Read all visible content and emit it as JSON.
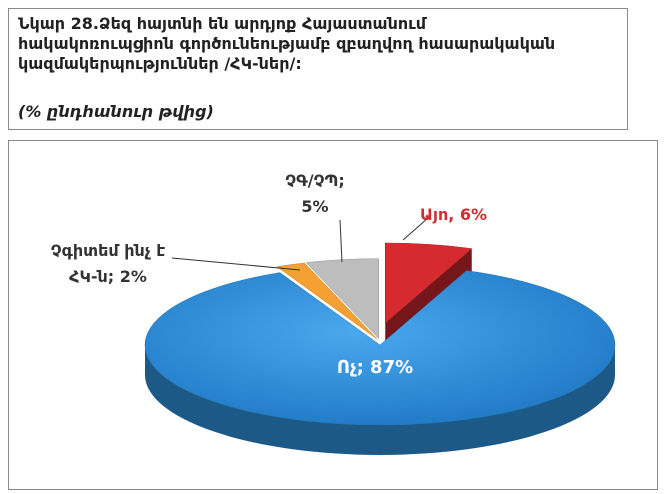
{
  "chart_data": {
    "type": "pie",
    "title": "Նկար 28.Ձեզ հայտնի են արդյոք Հայաստանում հակակոռուպցիոն գործունեությամբ զբաղվող հասարակական կազմակերպություններ /ՀԿ-ներ/:",
    "subtitle": "(% ընդհանուր թվից)",
    "values": [
      6,
      87,
      2,
      5
    ],
    "value_labels": [
      "Այո, 6%",
      "Ոչ; 87%",
      "Չգիտեմ ինչ է ՀԿ-ն; 2%",
      "ՉԳ/ՉՊ; 5%"
    ],
    "colors": [
      "#d42a30",
      "#2f8fd8",
      "#f5a032",
      "#bdbdbd"
    ]
  }
}
